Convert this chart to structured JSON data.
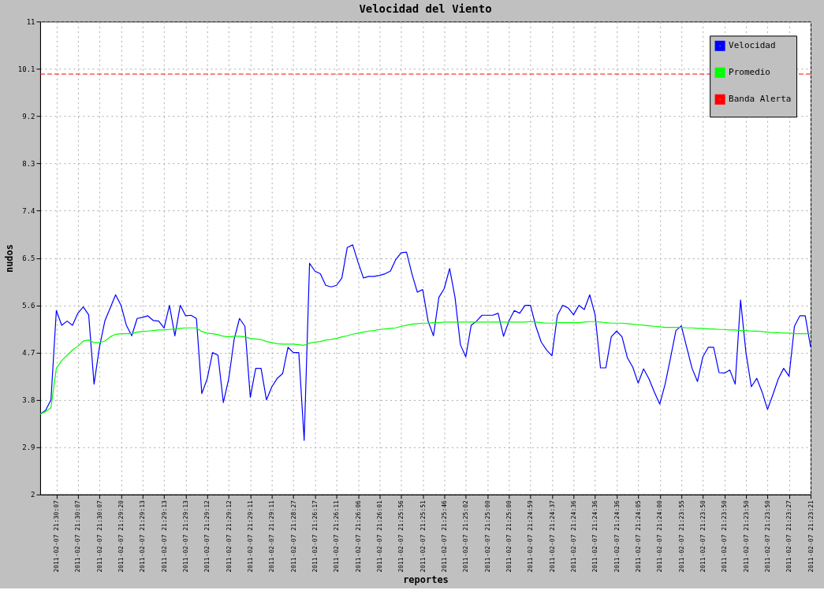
{
  "chart_data": {
    "type": "line",
    "title": "Velocidad del Viento",
    "xlabel": "reportes",
    "ylabel": "nudos",
    "categories": [
      null,
      null,
      null,
      "2011-02-07 21:30:07",
      null,
      null,
      null,
      "2011-02-07 21:30:07",
      null,
      null,
      null,
      "2011-02-07 21:30:07",
      null,
      null,
      null,
      "2011-02-07 21:29:20",
      null,
      null,
      null,
      "2011-02-07 21:29:13",
      null,
      null,
      null,
      "2011-02-07 21:29:13",
      null,
      null,
      null,
      "2011-02-07 21:29:13",
      null,
      null,
      null,
      "2011-02-07 21:29:12",
      null,
      null,
      null,
      "2011-02-07 21:29:12",
      null,
      null,
      null,
      "2011-02-07 21:29:11",
      null,
      null,
      null,
      "2011-02-07 21:29:11",
      null,
      null,
      null,
      "2011-02-07 21:28:27",
      null,
      null,
      null,
      "2011-02-07 21:26:17",
      null,
      null,
      null,
      "2011-02-07 21:26:11",
      null,
      null,
      null,
      "2011-02-07 21:26:06",
      null,
      null,
      null,
      "2011-02-07 21:26:01",
      null,
      null,
      null,
      "2011-02-07 21:25:56",
      null,
      null,
      null,
      "2011-02-07 21:25:51",
      null,
      null,
      null,
      "2011-02-07 21:25:46",
      null,
      null,
      null,
      "2011-02-07 21:25:02",
      null,
      null,
      null,
      "2011-02-07 21:25:00",
      null,
      null,
      null,
      "2011-02-07 21:25:00",
      null,
      null,
      null,
      "2011-02-07 21:24:59",
      null,
      null,
      null,
      "2011-02-07 21:24:37",
      null,
      null,
      null,
      "2011-02-07 21:24:36",
      null,
      null,
      null,
      "2011-02-07 21:24:36",
      null,
      null,
      null,
      "2011-02-07 21:24:36",
      null,
      null,
      null,
      "2011-02-07 21:24:05",
      null,
      null,
      null,
      "2011-02-07 21:24:00",
      null,
      null,
      null,
      "2011-02-07 21:23:55",
      null,
      null,
      null,
      "2011-02-07 21:23:50",
      null,
      null,
      null,
      "2011-02-07 21:23:50",
      null,
      null,
      null,
      "2011-02-07 21:23:50",
      null,
      null,
      null,
      "2011-02-07 21:23:50",
      null,
      null,
      null,
      "2011-02-07 21:23:27",
      null,
      null,
      null,
      "2011-02-07 21:23:21"
    ],
    "series": [
      {
        "name": "Velocidad",
        "color": "#0000ff",
        "values": [
          3.53,
          3.6,
          3.8,
          5.5,
          5.22,
          5.3,
          5.22,
          5.45,
          5.57,
          5.42,
          4.1,
          4.8,
          5.3,
          5.55,
          5.8,
          5.6,
          5.22,
          5.02,
          5.35,
          5.37,
          5.4,
          5.31,
          5.3,
          5.17,
          5.6,
          5.02,
          5.6,
          5.4,
          5.41,
          5.35,
          3.92,
          4.2,
          4.7,
          4.65,
          3.75,
          4.2,
          4.95,
          5.35,
          5.2,
          3.85,
          4.4,
          4.4,
          3.8,
          4.05,
          4.21,
          4.3,
          4.8,
          4.7,
          4.7,
          3.03,
          6.4,
          6.25,
          6.2,
          5.98,
          5.95,
          5.98,
          6.12,
          6.7,
          6.75,
          6.42,
          6.12,
          6.15,
          6.15,
          6.17,
          6.2,
          6.25,
          6.47,
          6.6,
          6.61,
          6.2,
          5.85,
          5.9,
          5.3,
          5.02,
          5.75,
          5.92,
          6.3,
          5.75,
          4.85,
          4.62,
          5.22,
          5.3,
          5.41,
          5.41,
          5.41,
          5.45,
          5.01,
          5.3,
          5.5,
          5.45,
          5.6,
          5.6,
          5.2,
          4.9,
          4.75,
          4.64,
          5.41,
          5.6,
          5.55,
          5.42,
          5.6,
          5.52,
          5.8,
          5.42,
          4.41,
          4.41,
          5.0,
          5.11,
          5.0,
          4.6,
          4.42,
          4.12,
          4.39,
          4.2,
          3.95,
          3.72,
          4.1,
          4.6,
          5.12,
          5.21,
          4.8,
          4.4,
          4.15,
          4.62,
          4.8,
          4.8,
          4.32,
          4.31,
          4.37,
          4.1,
          5.7,
          4.7,
          4.05,
          4.21,
          3.95,
          3.62,
          3.9,
          4.2,
          4.4,
          4.25,
          5.2,
          5.4,
          5.4,
          4.81
        ]
      },
      {
        "name": "Promedio",
        "color": "#00ff00",
        "values": [
          3.53,
          3.58,
          3.65,
          4.4,
          4.55,
          4.65,
          4.75,
          4.82,
          4.92,
          4.94,
          4.89,
          4.89,
          4.92,
          5.0,
          5.05,
          5.06,
          5.06,
          5.06,
          5.09,
          5.1,
          5.11,
          5.12,
          5.13,
          5.13,
          5.14,
          5.15,
          5.16,
          5.17,
          5.17,
          5.17,
          5.1,
          5.07,
          5.06,
          5.04,
          5.01,
          5.0,
          5.01,
          5.01,
          5.0,
          4.97,
          4.96,
          4.95,
          4.91,
          4.89,
          4.87,
          4.86,
          4.86,
          4.86,
          4.85,
          4.84,
          4.88,
          4.9,
          4.91,
          4.94,
          4.95,
          4.97,
          5.0,
          5.02,
          5.05,
          5.07,
          5.09,
          5.11,
          5.12,
          5.14,
          5.15,
          5.16,
          5.17,
          5.2,
          5.22,
          5.24,
          5.25,
          5.26,
          5.26,
          5.27,
          5.27,
          5.28,
          5.28,
          5.28,
          5.28,
          5.28,
          5.28,
          5.28,
          5.28,
          5.28,
          5.28,
          5.28,
          5.28,
          5.28,
          5.28,
          5.28,
          5.28,
          5.29,
          5.28,
          5.27,
          5.26,
          5.26,
          5.27,
          5.27,
          5.27,
          5.27,
          5.27,
          5.28,
          5.29,
          5.29,
          5.28,
          5.27,
          5.26,
          5.26,
          5.26,
          5.25,
          5.24,
          5.23,
          5.22,
          5.21,
          5.2,
          5.19,
          5.18,
          5.18,
          5.18,
          5.18,
          5.17,
          5.17,
          5.16,
          5.16,
          5.15,
          5.15,
          5.14,
          5.14,
          5.13,
          5.13,
          5.12,
          5.12,
          5.11,
          5.11,
          5.1,
          5.09,
          5.08,
          5.08,
          5.07,
          5.07,
          5.06,
          5.06,
          5.06,
          5.06
        ]
      }
    ],
    "ref_lines": [
      {
        "axis": "y",
        "value": 10.0,
        "label": "Banda Alerta",
        "color": "#ff0000",
        "line_style": "dashed"
      }
    ],
    "ylim": [
      2,
      11
    ],
    "yticks": [
      2,
      2.9,
      3.8,
      4.7,
      5.6,
      6.5,
      7.4,
      8.3,
      9.2,
      10.1,
      11
    ],
    "grid": true,
    "legend": "top right",
    "line_style": "solid"
  }
}
